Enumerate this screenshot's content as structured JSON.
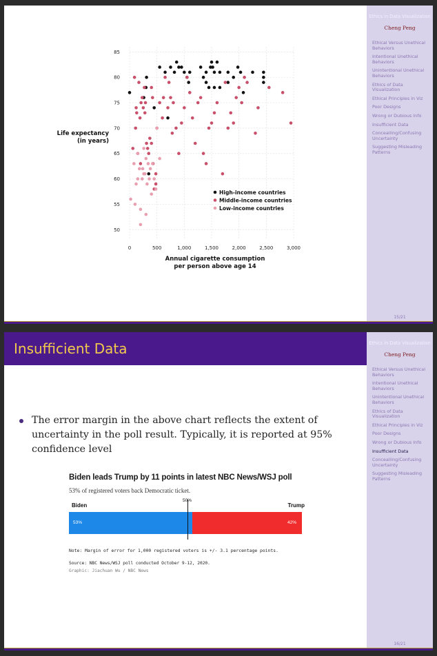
{
  "sidebar": {
    "title": "Ethics in Data Visualization",
    "author": "Cheng Peng",
    "items": [
      "Ethical Versus Unethical Behaviors",
      "Intentional Unethical Behaviors",
      "Unintentional Unethical Behaviors",
      "Ethics of Data Visualization",
      "Ethical Principles in Viz",
      "Poor Designs",
      "Wrong or Dubious Info",
      "Insufficient Data",
      "Concealling/Confusing Uncertainty",
      "Suggesting Misleading Patterns"
    ]
  },
  "slide1": {
    "page": "15/21",
    "chart_data": {
      "type": "scatter",
      "title": "",
      "xlabel": "Annual cigarette consumption per person above age 14",
      "ylabel": "Life expectancy (in years)",
      "xlabel_lines": [
        "Annual cigarette consumption",
        "per person above age 14"
      ],
      "ylabel_lines": [
        "Life expectancy",
        "(in years)"
      ],
      "xlim": [
        0,
        3000
      ],
      "ylim": [
        48,
        86
      ],
      "x_ticks": [
        0,
        500,
        1000,
        1500,
        2000,
        2500,
        3000
      ],
      "x_tick_labels": [
        "0",
        "500",
        "1,000",
        "1,500",
        "2,000",
        "2,500",
        "3,000"
      ],
      "y_ticks": [
        50,
        55,
        60,
        65,
        70,
        75,
        80,
        85
      ],
      "grid": true,
      "legend_position": "bottom-right",
      "series": [
        {
          "name": "High-income countries",
          "color": "#111111",
          "points": [
            [
              0,
              77
            ],
            [
              260,
              76
            ],
            [
              300,
              78
            ],
            [
              310,
              80
            ],
            [
              350,
              61
            ],
            [
              450,
              74
            ],
            [
              550,
              82
            ],
            [
              650,
              81
            ],
            [
              700,
              72
            ],
            [
              750,
              82
            ],
            [
              820,
              81
            ],
            [
              860,
              83
            ],
            [
              900,
              82
            ],
            [
              950,
              82
            ],
            [
              1000,
              81
            ],
            [
              1050,
              80
            ],
            [
              1080,
              79
            ],
            [
              1100,
              81
            ],
            [
              1300,
              82
            ],
            [
              1350,
              80
            ],
            [
              1400,
              81
            ],
            [
              1400,
              79
            ],
            [
              1450,
              78
            ],
            [
              1480,
              82
            ],
            [
              1500,
              83
            ],
            [
              1520,
              82
            ],
            [
              1550,
              81
            ],
            [
              1550,
              78
            ],
            [
              1600,
              83
            ],
            [
              1650,
              81
            ],
            [
              1650,
              78
            ],
            [
              1800,
              79
            ],
            [
              1800,
              81
            ],
            [
              1900,
              80
            ],
            [
              1980,
              82
            ],
            [
              2030,
              81
            ],
            [
              2080,
              77
            ],
            [
              2250,
              81
            ],
            [
              2450,
              79
            ],
            [
              2450,
              80
            ],
            [
              2450,
              81
            ]
          ]
        },
        {
          "name": "Middle-income countries",
          "color": "#c9506a",
          "points": [
            [
              90,
              80
            ],
            [
              60,
              66
            ],
            [
              110,
              70
            ],
            [
              120,
              74
            ],
            [
              130,
              73
            ],
            [
              150,
              65
            ],
            [
              170,
              79
            ],
            [
              190,
              72
            ],
            [
              200,
              63
            ],
            [
              210,
              75
            ],
            [
              230,
              76
            ],
            [
              250,
              74
            ],
            [
              270,
              78
            ],
            [
              280,
              73
            ],
            [
              290,
              75
            ],
            [
              310,
              67
            ],
            [
              330,
              66
            ],
            [
              350,
              65
            ],
            [
              370,
              68
            ],
            [
              400,
              78
            ],
            [
              420,
              76
            ],
            [
              450,
              58
            ],
            [
              480,
              59
            ],
            [
              500,
              70
            ],
            [
              550,
              75
            ],
            [
              600,
              72
            ],
            [
              620,
              76
            ],
            [
              650,
              80
            ],
            [
              700,
              74
            ],
            [
              720,
              79
            ],
            [
              750,
              76
            ],
            [
              780,
              69
            ],
            [
              800,
              75
            ],
            [
              850,
              70
            ],
            [
              900,
              65
            ],
            [
              950,
              71
            ],
            [
              1000,
              74
            ],
            [
              1050,
              80
            ],
            [
              1100,
              77
            ],
            [
              1150,
              72
            ],
            [
              1200,
              67
            ],
            [
              1250,
              75
            ],
            [
              1300,
              76
            ],
            [
              1350,
              65
            ],
            [
              1400,
              63
            ],
            [
              1450,
              70
            ],
            [
              1500,
              71
            ],
            [
              1550,
              73
            ],
            [
              1600,
              75
            ],
            [
              1700,
              61
            ],
            [
              1750,
              79
            ],
            [
              1800,
              70
            ],
            [
              1850,
              73
            ],
            [
              1900,
              71
            ],
            [
              1950,
              76
            ],
            [
              2000,
              78
            ],
            [
              2050,
              75
            ],
            [
              2100,
              80
            ],
            [
              2150,
              79
            ],
            [
              2300,
              69
            ],
            [
              2350,
              74
            ],
            [
              2550,
              78
            ],
            [
              2800,
              77
            ],
            [
              2950,
              71
            ],
            [
              400,
              67
            ],
            [
              430,
              63
            ],
            [
              480,
              61
            ]
          ]
        },
        {
          "name": "Low-income countries",
          "color": "#e8a0b0",
          "points": [
            [
              20,
              56
            ],
            [
              80,
              63
            ],
            [
              100,
              55
            ],
            [
              120,
              59
            ],
            [
              150,
              65
            ],
            [
              180,
              62
            ],
            [
              200,
              51
            ],
            [
              230,
              60
            ],
            [
              240,
              62
            ],
            [
              260,
              66
            ],
            [
              280,
              61
            ],
            [
              300,
              53
            ],
            [
              320,
              59
            ],
            [
              340,
              63
            ],
            [
              360,
              60
            ],
            [
              380,
              62
            ],
            [
              400,
              57
            ],
            [
              420,
              63
            ],
            [
              450,
              60
            ],
            [
              480,
              58
            ],
            [
              500,
              70
            ],
            [
              550,
              64
            ],
            [
              260,
              61
            ],
            [
              300,
              64
            ],
            [
              200,
              54
            ],
            [
              150,
              60
            ]
          ]
        }
      ]
    }
  },
  "slide2": {
    "title": "Insufficient Data",
    "page": "16/21",
    "bullet": "The error margin in the above chart reflects the extent of uncertainty in the poll result. Typically, it is reported at 95% confidence level",
    "poll": {
      "title": "Biden leads Trump by 11 points in latest NBC News/WSJ poll",
      "subtitle": "53% of registered voters back Democratic ticket.",
      "left_label": "Biden",
      "right_label": "Trump",
      "midpoint_label": "50%",
      "biden_pct": 53,
      "trump_pct": 42,
      "biden_label": "53%",
      "trump_label": "42%",
      "note": "Note: Margin of error for 1,000 registered voters is +/- 3.1 percentage points.",
      "source": "Source: NBC News/WSJ poll conducted October 9-12, 2020.",
      "graphic": "Graphic: Jiachuan Wu / NBC News"
    }
  }
}
